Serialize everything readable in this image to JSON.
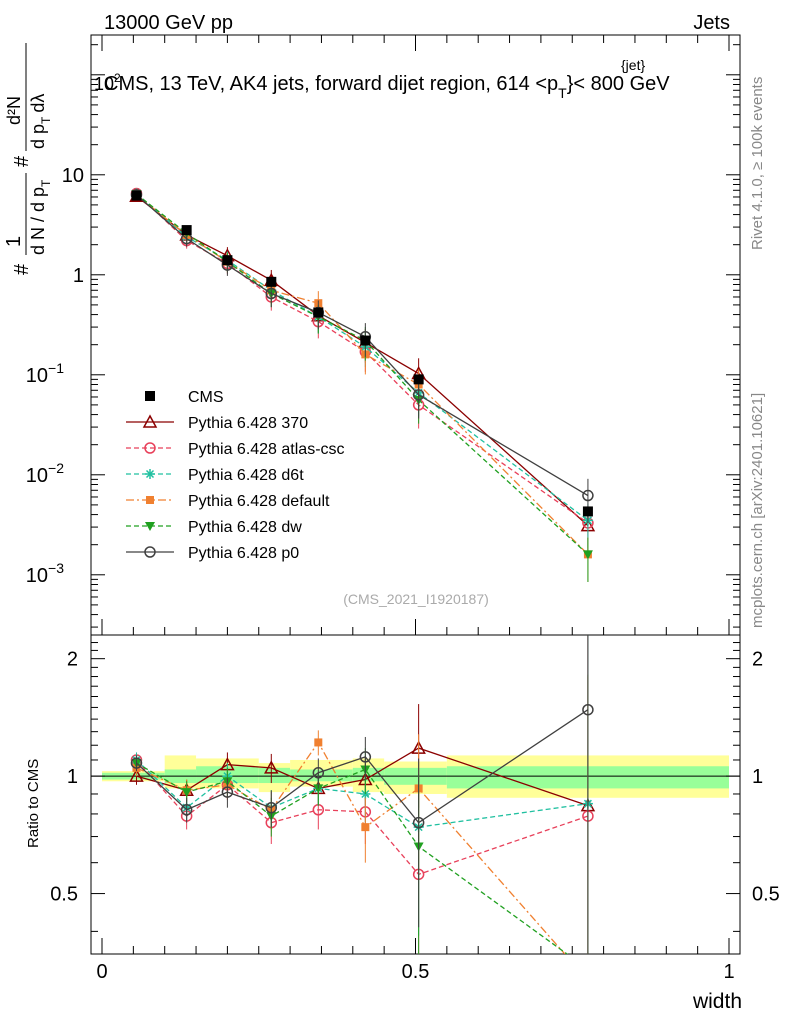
{
  "header": {
    "left": "13000 GeV pp",
    "right": "Jets"
  },
  "title": "CMS, 13 TeV, AK4 jets, forward dijet region, 614 < p_T^{jet} < 800 GeV",
  "title_parts": {
    "pre": "CMS, 13 TeV, AK4 jets, forward dijet region, 614 <p",
    "sub": "T",
    "sup": "{jet}",
    "post": "}< 800 GeV"
  },
  "watermark": "(CMS_2021_I1920187)",
  "side_labels": {
    "rivet": "Rivet 4.1.0, ≥ 100k events",
    "mcplots": "mcplots.cern.ch [arXiv:2401.10621]"
  },
  "main_ylabel": {
    "sharp1": "#",
    "one": "1",
    "dN": "d N / d p",
    "T1": "T",
    "sharp2": "#",
    "d2N": "d²N",
    "dpT": "d p",
    "T2": "T",
    "dlambda": "dλ"
  },
  "ratio_ylabel": "Ratio to CMS",
  "xlabel": "width",
  "main_yticks": [
    {
      "v": 0.001,
      "base": "10",
      "exp": "−3"
    },
    {
      "v": 0.01,
      "base": "10",
      "exp": "−2"
    },
    {
      "v": 0.1,
      "base": "10",
      "exp": "−1"
    },
    {
      "v": 1,
      "label": "1"
    },
    {
      "v": 10,
      "label": "10"
    },
    {
      "v": 100,
      "base": "10",
      "exp": "2"
    }
  ],
  "ratio_yticks": [
    {
      "v": 0.5,
      "label": "0.5"
    },
    {
      "v": 1,
      "label": "1"
    },
    {
      "v": 2,
      "label": "2"
    }
  ],
  "xticks": [
    {
      "v": 0,
      "label": "0"
    },
    {
      "v": 0.5,
      "label": "0.5"
    },
    {
      "v": 1,
      "label": "1"
    }
  ],
  "chart_data": {
    "type": "scatter",
    "xlim": [
      0,
      1
    ],
    "main_ylim": [
      0.00025,
      250
    ],
    "main_yscale": "log",
    "ratio_ylim": [
      0.35,
      2.3
    ],
    "ratio_yscale": "log",
    "bin_edges": [
      0,
      0.1,
      0.15,
      0.25,
      0.3,
      0.4,
      0.45,
      0.55,
      1.0
    ],
    "band_inner": [
      [
        0.98,
        1.02
      ],
      [
        0.96,
        1.04
      ],
      [
        0.96,
        1.06
      ],
      [
        0.96,
        1.05
      ],
      [
        0.97,
        1.04
      ],
      [
        0.97,
        1.05
      ],
      [
        0.95,
        1.05
      ],
      [
        0.93,
        1.06
      ]
    ],
    "band_outer": [
      [
        0.97,
        1.03
      ],
      [
        0.93,
        1.13
      ],
      [
        0.93,
        1.11
      ],
      [
        0.91,
        1.08
      ],
      [
        0.94,
        1.1
      ],
      [
        0.91,
        1.11
      ],
      [
        0.9,
        1.09
      ],
      [
        0.88,
        1.13
      ]
    ],
    "x": [
      0.055,
      0.135,
      0.2,
      0.27,
      0.345,
      0.42,
      0.505,
      0.775
    ],
    "cms": {
      "name": "CMS",
      "values": [
        6.2,
        2.8,
        1.4,
        0.85,
        0.42,
        0.22,
        0.09,
        0.0043
      ]
    },
    "series": [
      {
        "name": "Pythia 6.428 370",
        "color": "#8b0000",
        "dash": "",
        "marker": "triangle-open",
        "values": [
          6.1,
          2.5,
          1.55,
          0.88,
          0.39,
          0.21,
          0.103,
          0.0031
        ],
        "ratio": [
          1.0,
          0.92,
          1.07,
          1.05,
          0.93,
          0.98,
          1.18,
          0.84
        ],
        "ratio_err": [
          0.05,
          0.06,
          0.08,
          0.09,
          0.09,
          0.14,
          0.35,
          1.5
        ]
      },
      {
        "name": "Pythia 6.428 atlas-csc",
        "color": "#e8405a",
        "dash": "5,3",
        "marker": "circle-open",
        "values": [
          6.5,
          2.2,
          1.3,
          0.6,
          0.34,
          0.17,
          0.05,
          0.0033
        ],
        "ratio": [
          1.1,
          0.79,
          0.95,
          0.76,
          0.82,
          0.81,
          0.56,
          0.79
        ],
        "ratio_err": [
          0.05,
          0.06,
          0.08,
          0.09,
          0.09,
          0.14,
          0.35,
          1.5
        ]
      },
      {
        "name": "Pythia 6.428 d6t",
        "color": "#20c0a0",
        "dash": "5,3",
        "marker": "star",
        "values": [
          6.5,
          2.4,
          1.4,
          0.7,
          0.38,
          0.19,
          0.066,
          0.0035
        ],
        "ratio": [
          1.1,
          0.83,
          1.0,
          0.83,
          0.93,
          0.9,
          0.74,
          0.85
        ],
        "ratio_err": [
          0.05,
          0.06,
          0.08,
          0.09,
          0.09,
          0.14,
          0.35,
          1.5
        ]
      },
      {
        "name": "Pythia 6.428 default",
        "color": "#f08030",
        "dash": "8,3,2,3",
        "marker": "square",
        "values": [
          6.3,
          2.5,
          1.35,
          0.7,
          0.52,
          0.16,
          0.08,
          0.0016
        ],
        "ratio": [
          1.05,
          0.92,
          0.95,
          0.82,
          1.22,
          0.74,
          0.93,
          0.3
        ],
        "ratio_err": [
          0.05,
          0.06,
          0.08,
          0.09,
          0.09,
          0.14,
          0.35,
          1.5
        ]
      },
      {
        "name": "Pythia 6.428 dw",
        "color": "#20a020",
        "dash": "5,3",
        "marker": "triangle-down",
        "values": [
          6.4,
          2.6,
          1.35,
          0.65,
          0.38,
          0.22,
          0.056,
          0.0016
        ],
        "ratio": [
          1.08,
          0.91,
          0.97,
          0.79,
          0.93,
          1.04,
          0.66,
          0.32
        ],
        "ratio_err": [
          0.05,
          0.06,
          0.08,
          0.09,
          0.09,
          0.14,
          0.35,
          1.5
        ]
      },
      {
        "name": "Pythia 6.428 p0",
        "color": "#404040",
        "dash": "",
        "marker": "circle-open",
        "values": [
          6.3,
          2.3,
          1.25,
          0.65,
          0.42,
          0.24,
          0.063,
          0.0062
        ],
        "ratio": [
          1.08,
          0.82,
          0.91,
          0.83,
          1.02,
          1.12,
          0.76,
          1.48
        ],
        "ratio_err": [
          0.05,
          0.06,
          0.08,
          0.09,
          0.09,
          0.14,
          0.35,
          1.5
        ]
      }
    ]
  }
}
